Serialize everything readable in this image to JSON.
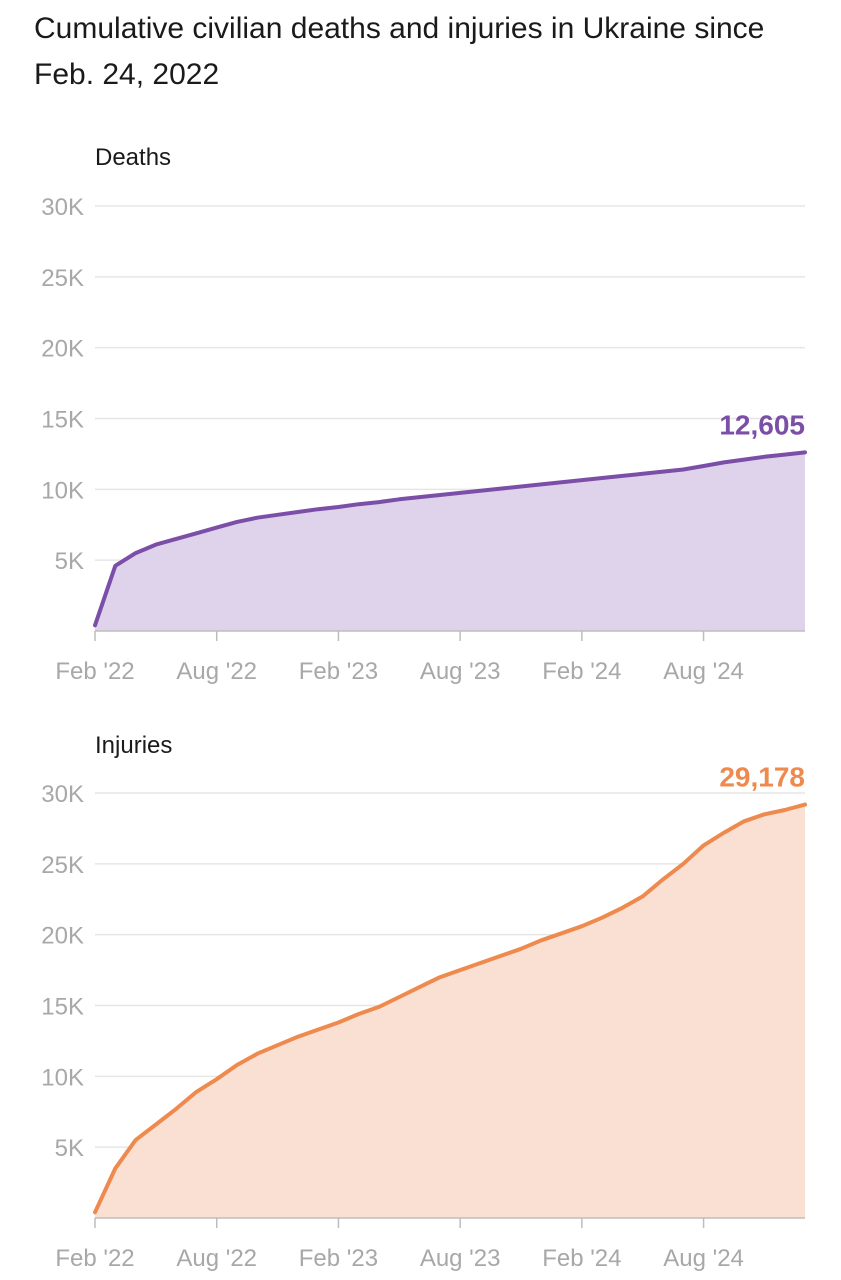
{
  "title": "Cumulative civilian deaths and injuries in Ukraine since Feb. 24, 2022",
  "colors": {
    "deaths_line": "#7b4fa8",
    "deaths_fill": "#dfd3eb",
    "injuries_line": "#ee8a4e",
    "injuries_fill": "#fadfd3"
  },
  "chart_data": [
    {
      "type": "area",
      "title": "Deaths",
      "series_name": "Deaths",
      "xlabel": "",
      "ylabel": "",
      "x_unit": "months since Feb 2022",
      "xlim": [
        0,
        35
      ],
      "ylim": [
        0,
        30000
      ],
      "grid": true,
      "y_ticks": [
        5000,
        10000,
        15000,
        20000,
        25000,
        30000
      ],
      "y_tick_labels": [
        "5K",
        "10K",
        "15K",
        "20K",
        "25K",
        "30K"
      ],
      "x_ticks": [
        0,
        6,
        12,
        18,
        24,
        30
      ],
      "x_tick_labels": [
        "Feb '22",
        "Aug '22",
        "Feb '23",
        "Aug '23",
        "Feb '24",
        "Aug '24"
      ],
      "x": [
        0,
        1,
        2,
        3,
        4,
        5,
        6,
        7,
        8,
        9,
        10,
        11,
        12,
        13,
        14,
        15,
        16,
        17,
        18,
        19,
        20,
        21,
        22,
        23,
        24,
        25,
        26,
        27,
        28,
        29,
        30,
        31,
        32,
        33,
        34,
        35
      ],
      "values": [
        400,
        4600,
        5500,
        6100,
        6500,
        6900,
        7300,
        7700,
        8000,
        8200,
        8400,
        8600,
        8750,
        8950,
        9100,
        9300,
        9450,
        9600,
        9750,
        9900,
        10050,
        10200,
        10350,
        10500,
        10650,
        10800,
        10950,
        11100,
        11250,
        11400,
        11650,
        11900,
        12100,
        12300,
        12450,
        12605
      ],
      "end_value_label": "12,605"
    },
    {
      "type": "area",
      "title": "Injuries",
      "series_name": "Injuries",
      "xlabel": "",
      "ylabel": "",
      "x_unit": "months since Feb 2022",
      "xlim": [
        0,
        35
      ],
      "ylim": [
        0,
        30000
      ],
      "grid": true,
      "y_ticks": [
        5000,
        10000,
        15000,
        20000,
        25000,
        30000
      ],
      "y_tick_labels": [
        "5K",
        "10K",
        "15K",
        "20K",
        "25K",
        "30K"
      ],
      "x_ticks": [
        0,
        6,
        12,
        18,
        24,
        30
      ],
      "x_tick_labels": [
        "Feb '22",
        "Aug '22",
        "Feb '23",
        "Aug '23",
        "Feb '24",
        "Aug '24"
      ],
      "x": [
        0,
        1,
        2,
        3,
        4,
        5,
        6,
        7,
        8,
        9,
        10,
        11,
        12,
        13,
        14,
        15,
        16,
        17,
        18,
        19,
        20,
        21,
        22,
        23,
        24,
        25,
        26,
        27,
        28,
        29,
        30,
        31,
        32,
        33,
        34,
        35
      ],
      "values": [
        400,
        3500,
        5500,
        6600,
        7700,
        8900,
        9800,
        10800,
        11600,
        12200,
        12800,
        13300,
        13800,
        14400,
        14900,
        15600,
        16300,
        17000,
        17500,
        18000,
        18500,
        19000,
        19600,
        20100,
        20600,
        21200,
        21900,
        22700,
        23900,
        25000,
        26300,
        27200,
        28000,
        28500,
        28800,
        29178
      ],
      "end_value_label": "29,178"
    }
  ]
}
